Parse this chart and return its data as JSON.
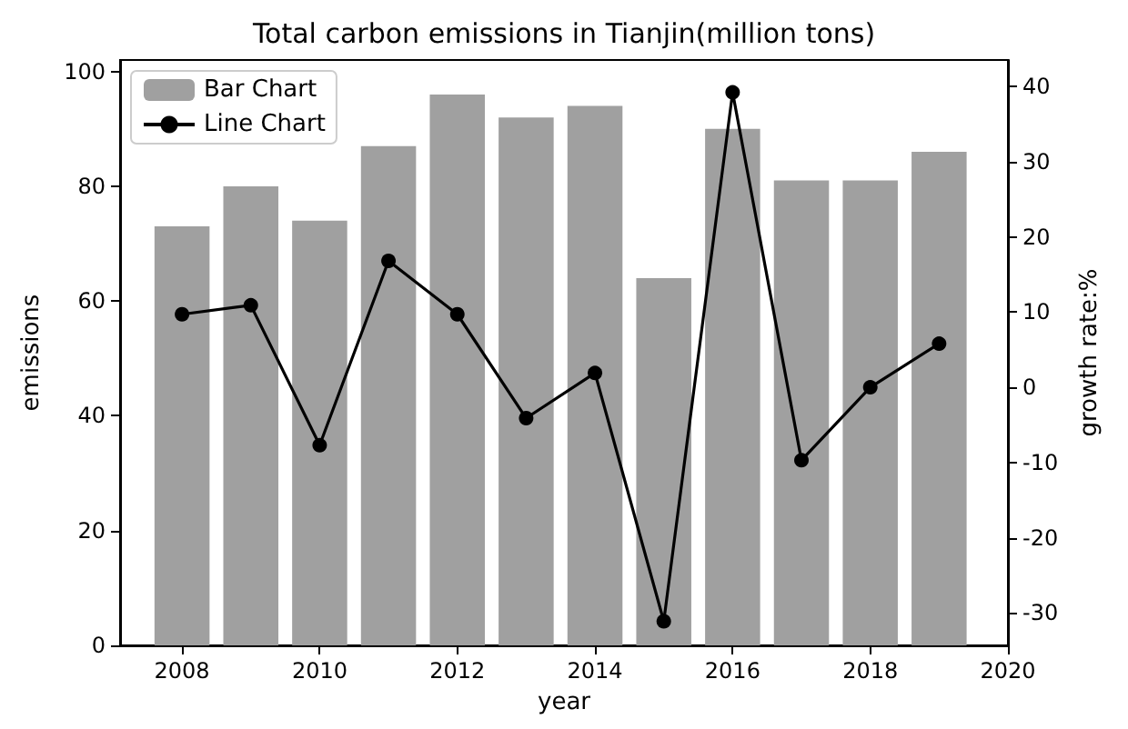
{
  "chart_data": {
    "type": "bar",
    "title": "Total carbon emissions in Tianjin(million tons)",
    "xlabel": "year",
    "ylabel": "emissions",
    "y2label": "growth rate:%",
    "x": [
      2008,
      2009,
      2010,
      2011,
      2012,
      2013,
      2014,
      2015,
      2016,
      2017,
      2018,
      2019
    ],
    "series": [
      {
        "name": "Bar Chart",
        "color": "#a0a0a0",
        "values": [
          73,
          80,
          74,
          87,
          96,
          92,
          94,
          64,
          90,
          81,
          81,
          86
        ]
      },
      {
        "name": "Line Chart",
        "type": "line",
        "axis": "y2",
        "color": "#000000",
        "values": [
          9.7,
          10.9,
          -7.7,
          16.8,
          9.7,
          -4.1,
          1.9,
          -31.1,
          39.2,
          -9.7,
          0,
          5.8
        ]
      }
    ],
    "xlim": [
      2007.1,
      2020
    ],
    "xticks": [
      2008,
      2010,
      2012,
      2014,
      2016,
      2018,
      2020
    ],
    "ylim": [
      0,
      102
    ],
    "yticks": [
      0,
      20,
      40,
      60,
      80,
      100
    ],
    "y2lim": [
      -34.3,
      43.5
    ],
    "y2ticks": [
      -30,
      -20,
      -10,
      0,
      10,
      20,
      30,
      40
    ],
    "legend": "top left",
    "marker": "circle",
    "line_style": "solid",
    "grid": false
  }
}
